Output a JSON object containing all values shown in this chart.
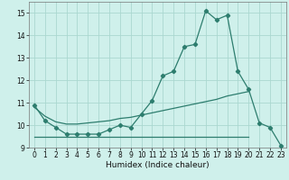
{
  "xlabel": "Humidex (Indice chaleur)",
  "x_values": [
    0,
    1,
    2,
    3,
    4,
    5,
    6,
    7,
    8,
    9,
    10,
    11,
    12,
    13,
    14,
    15,
    16,
    17,
    18,
    19,
    20,
    21,
    22,
    23
  ],
  "line_main": [
    10.9,
    10.2,
    9.9,
    9.6,
    9.6,
    9.6,
    9.6,
    9.8,
    10.0,
    9.9,
    10.5,
    11.1,
    12.2,
    12.4,
    13.5,
    13.6,
    15.1,
    14.7,
    14.9,
    12.4,
    11.6,
    10.1,
    9.9,
    9.1
  ],
  "line_upper": [
    10.8,
    10.4,
    10.15,
    10.05,
    10.05,
    10.1,
    10.15,
    10.2,
    10.3,
    10.35,
    10.45,
    10.55,
    10.65,
    10.75,
    10.85,
    10.95,
    11.05,
    11.15,
    11.3,
    11.4,
    11.5,
    null,
    null,
    null
  ],
  "line_lower": [
    9.5,
    9.5,
    9.5,
    9.5,
    9.5,
    9.5,
    9.5,
    9.5,
    9.5,
    9.5,
    9.5,
    9.5,
    9.5,
    9.5,
    9.5,
    9.5,
    9.5,
    9.5,
    9.5,
    9.5,
    9.5,
    null,
    null,
    null
  ],
  "color": "#2d7d6e",
  "bg_color": "#cff0eb",
  "grid_color": "#aad8d0",
  "ylim": [
    9.0,
    15.5
  ],
  "xlim": [
    -0.5,
    23.5
  ],
  "yticks": [
    9,
    10,
    11,
    12,
    13,
    14,
    15
  ],
  "xticks": [
    0,
    1,
    2,
    3,
    4,
    5,
    6,
    7,
    8,
    9,
    10,
    11,
    12,
    13,
    14,
    15,
    16,
    17,
    18,
    19,
    20,
    21,
    22,
    23
  ],
  "xlabel_fontsize": 6.5,
  "tick_fontsize": 5.5
}
